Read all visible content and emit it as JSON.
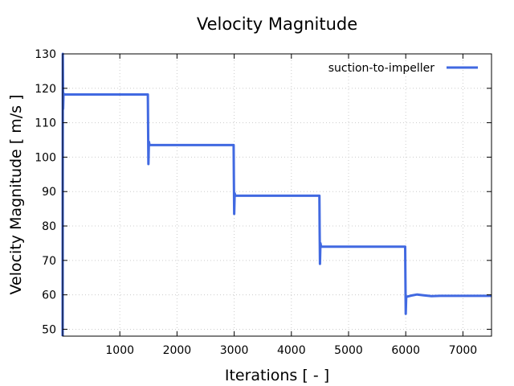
{
  "chart_data": {
    "type": "line",
    "title": "Velocity Magnitude",
    "xlabel": "Iterations [ - ]",
    "ylabel": "Velocity Magnitude [ m/s ]",
    "xlim": [
      0,
      7500
    ],
    "ylim": [
      48,
      130
    ],
    "xticks": [
      1000,
      2000,
      3000,
      4000,
      5000,
      6000,
      7000
    ],
    "yticks": [
      50,
      60,
      70,
      80,
      90,
      100,
      110,
      120,
      130
    ],
    "grid": true,
    "legend_position": "top-right",
    "series": [
      {
        "name": "suction-to-impeller",
        "color": "#4169e1",
        "x": [
          0,
          3,
          8,
          15,
          25,
          1490,
          1495,
          1500,
          1508,
          1520,
          2990,
          2995,
          3000,
          3008,
          3020,
          4490,
          4495,
          4500,
          4508,
          4520,
          5990,
          5995,
          6000,
          6008,
          6030,
          6100,
          6200,
          6300,
          6450,
          6600,
          7500
        ],
        "y": [
          48,
          130,
          114,
          118.5,
          118.2,
          118.2,
          109,
          98,
          104.5,
          103.5,
          103.5,
          94,
          83.5,
          89.5,
          88.8,
          88.8,
          79,
          69,
          75,
          74,
          74,
          65,
          54.5,
          59.5,
          59.5,
          59.8,
          60.1,
          59.9,
          59.6,
          59.7,
          59.7
        ]
      }
    ]
  }
}
